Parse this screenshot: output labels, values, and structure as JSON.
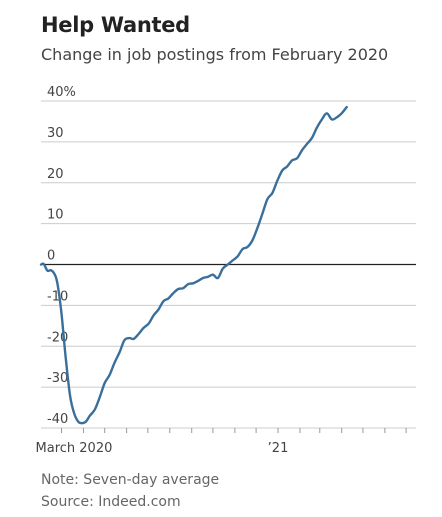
{
  "header": {
    "title": "Help Wanted",
    "subtitle": "Change in job postings from February 2020"
  },
  "footer": {
    "note": "Note: Seven-day average",
    "source": "Source: Indeed.com"
  },
  "colors": {
    "line": "#3a6f9c",
    "grid": "#cccccc",
    "zero": "#222222",
    "text": "#444444"
  },
  "chart_data": {
    "type": "line",
    "title": "Help Wanted",
    "subtitle": "Change in job postings from February 2020",
    "xlabel": "",
    "ylabel": "",
    "y_ticks": [
      {
        "value": 40,
        "label": "40%"
      },
      {
        "value": 30,
        "label": "30"
      },
      {
        "value": 20,
        "label": "20"
      },
      {
        "value": 10,
        "label": "10"
      },
      {
        "value": 0,
        "label": "0"
      },
      {
        "value": -10,
        "label": "-10"
      },
      {
        "value": -20,
        "label": "-20"
      },
      {
        "value": -30,
        "label": "-30"
      },
      {
        "value": -40,
        "label": "-40"
      }
    ],
    "x_ticks": [
      {
        "value": "2020-03-01",
        "label": "March 2020"
      },
      {
        "value": "2021-01-01",
        "label": "’21"
      }
    ],
    "xlim": [
      "2020-02-01",
      "2021-07-15"
    ],
    "ylim": [
      -40,
      40
    ],
    "grid": true,
    "legend": "none",
    "series": [
      {
        "values": [
          {
            "x": "2020-02-01",
            "y": 0.0
          },
          {
            "x": "2020-02-05",
            "y": 0.1
          },
          {
            "x": "2020-02-10",
            "y": -1.5
          },
          {
            "x": "2020-02-15",
            "y": -1.4
          },
          {
            "x": "2020-02-20",
            "y": -2.3
          },
          {
            "x": "2020-02-24",
            "y": -4.5
          },
          {
            "x": "2020-03-01",
            "y": -12.0
          },
          {
            "x": "2020-03-07",
            "y": -23.0
          },
          {
            "x": "2020-03-13",
            "y": -32.0
          },
          {
            "x": "2020-03-19",
            "y": -36.5
          },
          {
            "x": "2020-03-25",
            "y": -38.5
          },
          {
            "x": "2020-03-31",
            "y": -38.8
          },
          {
            "x": "2020-04-05",
            "y": -38.3
          },
          {
            "x": "2020-04-10",
            "y": -37.0
          },
          {
            "x": "2020-04-17",
            "y": -35.5
          },
          {
            "x": "2020-04-24",
            "y": -32.5
          },
          {
            "x": "2020-05-01",
            "y": -29.0
          },
          {
            "x": "2020-05-08",
            "y": -27.0
          },
          {
            "x": "2020-05-15",
            "y": -24.0
          },
          {
            "x": "2020-05-22",
            "y": -21.5
          },
          {
            "x": "2020-05-29",
            "y": -18.5
          },
          {
            "x": "2020-06-05",
            "y": -18.0
          },
          {
            "x": "2020-06-11",
            "y": -18.2
          },
          {
            "x": "2020-06-18",
            "y": -17.0
          },
          {
            "x": "2020-06-25",
            "y": -15.5
          },
          {
            "x": "2020-07-02",
            "y": -14.5
          },
          {
            "x": "2020-07-09",
            "y": -12.5
          },
          {
            "x": "2020-07-16",
            "y": -11.0
          },
          {
            "x": "2020-07-23",
            "y": -9.0
          },
          {
            "x": "2020-07-30",
            "y": -8.3
          },
          {
            "x": "2020-08-06",
            "y": -7.0
          },
          {
            "x": "2020-08-13",
            "y": -6.0
          },
          {
            "x": "2020-08-20",
            "y": -5.8
          },
          {
            "x": "2020-08-27",
            "y": -4.8
          },
          {
            "x": "2020-09-03",
            "y": -4.6
          },
          {
            "x": "2020-09-10",
            "y": -4.0
          },
          {
            "x": "2020-09-17",
            "y": -3.3
          },
          {
            "x": "2020-09-24",
            "y": -3.0
          },
          {
            "x": "2020-10-01",
            "y": -2.5
          },
          {
            "x": "2020-10-08",
            "y": -3.3
          },
          {
            "x": "2020-10-15",
            "y": -1.0
          },
          {
            "x": "2020-10-22",
            "y": 0.0
          },
          {
            "x": "2020-10-29",
            "y": 1.0
          },
          {
            "x": "2020-11-05",
            "y": 2.0
          },
          {
            "x": "2020-11-12",
            "y": 3.8
          },
          {
            "x": "2020-11-19",
            "y": 4.3
          },
          {
            "x": "2020-11-26",
            "y": 6.0
          },
          {
            "x": "2020-12-03",
            "y": 9.0
          },
          {
            "x": "2020-12-10",
            "y": 12.5
          },
          {
            "x": "2020-12-17",
            "y": 16.0
          },
          {
            "x": "2020-12-24",
            "y": 17.5
          },
          {
            "x": "2020-12-31",
            "y": 20.5
          },
          {
            "x": "2021-01-07",
            "y": 23.0
          },
          {
            "x": "2021-01-14",
            "y": 24.0
          },
          {
            "x": "2021-01-21",
            "y": 25.5
          },
          {
            "x": "2021-01-28",
            "y": 26.0
          },
          {
            "x": "2021-02-04",
            "y": 28.0
          },
          {
            "x": "2021-02-11",
            "y": 29.5
          },
          {
            "x": "2021-02-18",
            "y": 31.0
          },
          {
            "x": "2021-02-25",
            "y": 33.5
          },
          {
            "x": "2021-03-04",
            "y": 35.5
          },
          {
            "x": "2021-03-11",
            "y": 37.0
          },
          {
            "x": "2021-03-18",
            "y": 35.5
          },
          {
            "x": "2021-03-25",
            "y": 36.0
          },
          {
            "x": "2021-04-01",
            "y": 37.0
          },
          {
            "x": "2021-04-08",
            "y": 38.5
          }
        ]
      }
    ]
  }
}
